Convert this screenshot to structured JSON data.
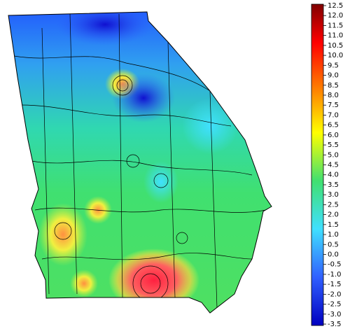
{
  "colorbar": {
    "min": -3.5,
    "max": 12.5,
    "ticks": [
      12.5,
      {
        "value": 12,
        "label": "12.0"
      },
      11.5,
      {
        "value": 11,
        "label": "11.0"
      },
      10.5,
      {
        "value": 10,
        "label": "10.0"
      },
      9.5,
      {
        "value": 9,
        "label": "9.0"
      },
      8.5,
      {
        "value": 8,
        "label": "8.0"
      },
      7.5,
      {
        "value": 7,
        "label": "7.0"
      },
      6.5,
      {
        "value": 6,
        "label": "6.0"
      },
      5.5,
      {
        "value": 5,
        "label": "5.0"
      },
      4.5,
      {
        "value": 4,
        "label": "4.0"
      },
      3.5,
      {
        "value": 3,
        "label": "3.0"
      },
      2.5,
      {
        "value": 2,
        "label": "2.0"
      },
      1.5,
      {
        "value": 1,
        "label": "1.0"
      },
      0.5,
      {
        "value": 0,
        "label": "0.0"
      },
      -0.5,
      {
        "value": -1,
        "label": "-1.0"
      },
      -1.5,
      {
        "value": -2,
        "label": "-2.0"
      },
      -2.5,
      {
        "value": -3,
        "label": "-3.0"
      },
      -3.5
    ]
  }
}
